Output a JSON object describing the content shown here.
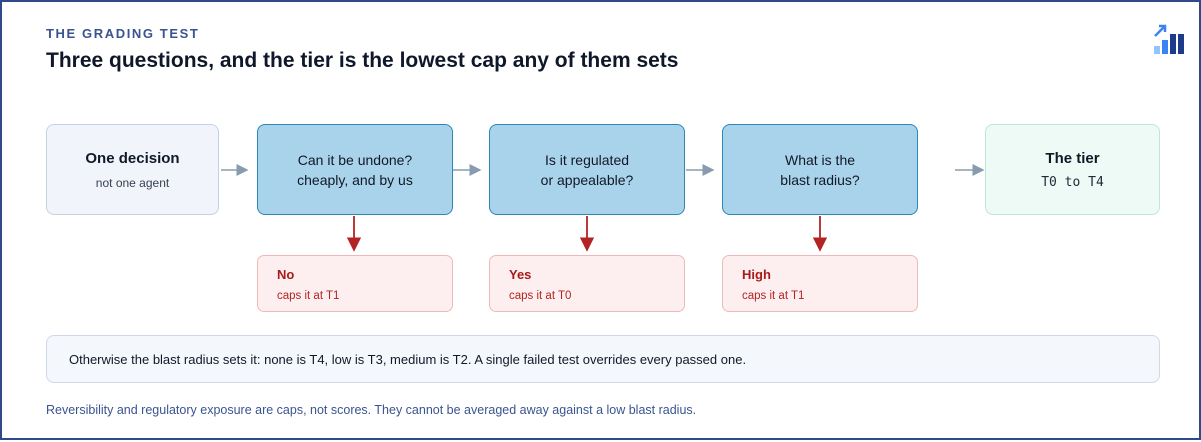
{
  "header": {
    "eyebrow": "THE GRADING TEST",
    "title": "Three questions, and the tier is the lowest cap any of them sets"
  },
  "logo": {
    "icon": "bar-chart-trend-icon",
    "colors": [
      "#1e3a8a",
      "#3b82f6",
      "#93c5fd"
    ]
  },
  "flow": {
    "start": {
      "label": "One decision",
      "sub": "not one agent"
    },
    "questions": [
      {
        "line1": "Can it be undone?",
        "line2": "cheaply, and by us",
        "cap_answer": "No",
        "cap_note": "caps it at T1"
      },
      {
        "line1": "Is it regulated",
        "line2": "or appealable?",
        "cap_answer": "Yes",
        "cap_note": "caps it at T0"
      },
      {
        "line1": "What is the",
        "line2": "blast radius?",
        "cap_answer": "High",
        "cap_note": "caps it at T1"
      }
    ],
    "end": {
      "label": "The tier",
      "sub": "T0 to T4"
    }
  },
  "note": "Otherwise the blast radius sets it: none is T4, low is T3, medium is T2. A single failed test overrides every passed one.",
  "footer": "Reversibility and regulatory exposure are caps, not scores. They cannot be averaged away against a low blast radius.",
  "colors": {
    "accent": "#3a5490",
    "question_fill": "#a9d3ea",
    "question_border": "#2a87b8",
    "cap_fill": "#fdefef",
    "cap_text": "#a61b1b",
    "flow_arrow": "#8a9bb0",
    "cap_arrow": "#b42323"
  }
}
